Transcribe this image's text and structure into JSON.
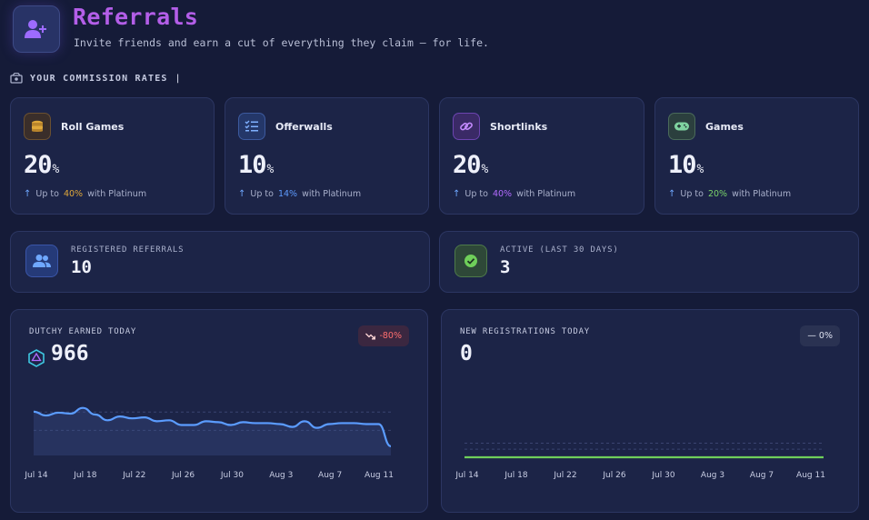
{
  "header": {
    "title": "Referrals",
    "subtitle": "Invite friends and earn a cut of everything they claim — for life.",
    "icon": "user-plus-icon"
  },
  "section": {
    "label": "YOUR COMMISSION RATES",
    "icon": "money-icon"
  },
  "rates": [
    {
      "name": "Roll Games",
      "value": "20",
      "unit": "%",
      "up_prefix": "Up to",
      "up_value": "40%",
      "up_suffix": "with Platinum",
      "icon": "coin-stack-icon",
      "accent": "#e0a83a"
    },
    {
      "name": "Offerwalls",
      "value": "10",
      "unit": "%",
      "up_prefix": "Up to",
      "up_value": "14%",
      "up_suffix": "with Platinum",
      "icon": "checklist-icon",
      "accent": "#5e9bff"
    },
    {
      "name": "Shortlinks",
      "value": "20",
      "unit": "%",
      "up_prefix": "Up to",
      "up_value": "40%",
      "up_suffix": "with Platinum",
      "icon": "link-icon",
      "accent": "#b36bff"
    },
    {
      "name": "Games",
      "value": "10",
      "unit": "%",
      "up_prefix": "Up to",
      "up_value": "20%",
      "up_suffix": "with Platinum",
      "icon": "gamepad-icon",
      "accent": "#7ad36a"
    }
  ],
  "stats": {
    "registered": {
      "label": "REGISTERED REFERRALS",
      "value": "10",
      "icon": "users-icon"
    },
    "active": {
      "label": "ACTIVE (LAST 30 DAYS)",
      "value": "3",
      "icon": "check-circle-icon"
    }
  },
  "earned_chart": {
    "label": "DUTCHY EARNED TODAY",
    "value": "966",
    "badge": "-80%",
    "icon": "dutchy-coin-icon"
  },
  "registrations_chart": {
    "label": "NEW REGISTRATIONS TODAY",
    "value": "0",
    "badge": "— 0%"
  },
  "chart_data": [
    {
      "type": "area",
      "title": "DUTCHY EARNED TODAY",
      "x_ticks": [
        "Jul 14",
        "Jul 18",
        "Jul 22",
        "Jul 26",
        "Jul 30",
        "Aug 3",
        "Aug 7",
        "Aug 11"
      ],
      "x": [
        "Jul 14",
        "Jul 15",
        "Jul 16",
        "Jul 17",
        "Jul 18",
        "Jul 19",
        "Jul 20",
        "Jul 21",
        "Jul 22",
        "Jul 23",
        "Jul 24",
        "Jul 25",
        "Jul 26",
        "Jul 27",
        "Jul 28",
        "Jul 29",
        "Jul 30",
        "Jul 31",
        "Aug 1",
        "Aug 2",
        "Aug 3",
        "Aug 4",
        "Aug 5",
        "Aug 6",
        "Aug 7",
        "Aug 8",
        "Aug 9",
        "Aug 10",
        "Aug 11",
        "Aug 12"
      ],
      "values": [
        4600,
        4200,
        4500,
        4400,
        5000,
        4300,
        3700,
        4100,
        3900,
        4000,
        3600,
        3700,
        3200,
        3200,
        3600,
        3500,
        3200,
        3500,
        3400,
        3400,
        3300,
        3000,
        3600,
        2900,
        3300,
        3400,
        3400,
        3300,
        3300,
        966
      ],
      "ylim": [
        0,
        6500
      ],
      "grid": true,
      "color": "#5b9cff"
    },
    {
      "type": "line",
      "title": "NEW REGISTRATIONS TODAY",
      "x_ticks": [
        "Jul 14",
        "Jul 18",
        "Jul 22",
        "Jul 26",
        "Jul 30",
        "Aug 3",
        "Aug 7",
        "Aug 11"
      ],
      "values": [
        0,
        0,
        0,
        0,
        0,
        0,
        0,
        0,
        0,
        0,
        0,
        0,
        0,
        0,
        0,
        0,
        0,
        0,
        0,
        0,
        0,
        0,
        0,
        0,
        0,
        0,
        0,
        0,
        0,
        0
      ],
      "ylim": [
        0,
        2
      ],
      "grid": true,
      "color": "#6fcf5a"
    }
  ]
}
